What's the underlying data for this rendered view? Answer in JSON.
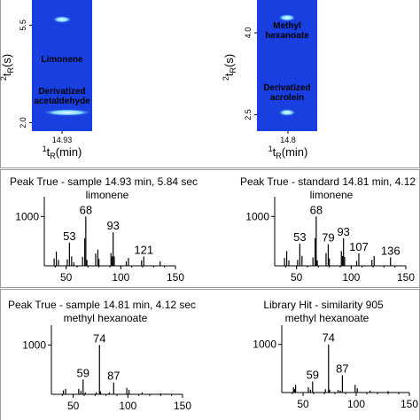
{
  "chart_data": [
    {
      "type": "heatmap",
      "id": "gcxgc-left",
      "x_tick_label": "14.93",
      "y_tick_labels": [
        "5.5",
        "2.0"
      ],
      "xlabel": "1tR(min)",
      "ylabel": "2tR(s)",
      "compounds": [
        {
          "label": "Limonene",
          "y": 5.84
        },
        {
          "label": "Derivatized acetaldehyde",
          "y": 2.2
        }
      ],
      "colors": {
        "background": "#1a3fe0",
        "spot": "#9fe8ff"
      }
    },
    {
      "type": "heatmap",
      "id": "gcxgc-right",
      "x_tick_label": "14.8",
      "y_tick_labels": [
        "4.0",
        "2.5"
      ],
      "xlabel": "1tR(min)",
      "ylabel": "2tR(s)",
      "compounds": [
        {
          "label": "Methyl hexanoate",
          "y": 4.12
        },
        {
          "label": "Derivatized acrolein",
          "y": 2.55
        }
      ],
      "colors": {
        "background": "#1a3fe0",
        "spot": "#9fe8ff"
      }
    },
    {
      "type": "bar",
      "id": "ms-sample-limonene",
      "title": "Peak True - sample 14.93 min, 5.84 sec",
      "subtitle": "limonene",
      "xlim": [
        30,
        150
      ],
      "ylim": [
        0,
        1400
      ],
      "x_ticks": [
        "50",
        "100",
        "150"
      ],
      "y_ticks": [
        "1000"
      ],
      "peaks": [
        [
          39,
          150
        ],
        [
          41,
          290
        ],
        [
          43,
          120
        ],
        [
          51,
          130
        ],
        [
          53,
          470
        ],
        [
          55,
          190
        ],
        [
          57,
          70
        ],
        [
          65,
          180
        ],
        [
          67,
          560
        ],
        [
          68,
          1000
        ],
        [
          69,
          120
        ],
        [
          77,
          250
        ],
        [
          79,
          330
        ],
        [
          80,
          140
        ],
        [
          91,
          260
        ],
        [
          92,
          190
        ],
        [
          93,
          680
        ],
        [
          94,
          190
        ],
        [
          105,
          90
        ],
        [
          107,
          160
        ],
        [
          119,
          110
        ],
        [
          121,
          190
        ],
        [
          136,
          90
        ]
      ],
      "peak_labels": [
        {
          "x": 53,
          "label": "53"
        },
        {
          "x": 68,
          "label": "68"
        },
        {
          "x": 93,
          "label": "93"
        },
        {
          "x": 121,
          "label": "121"
        }
      ]
    },
    {
      "type": "bar",
      "id": "ms-standard-limonene",
      "title": "Peak True - standard 14.81 min, 4.12",
      "subtitle": "limonene",
      "xlim": [
        30,
        150
      ],
      "ylim": [
        0,
        1400
      ],
      "x_ticks": [
        "50",
        "100",
        "150"
      ],
      "y_ticks": [
        "1000"
      ],
      "peaks": [
        [
          39,
          160
        ],
        [
          41,
          300
        ],
        [
          43,
          110
        ],
        [
          51,
          120
        ],
        [
          53,
          450
        ],
        [
          55,
          200
        ],
        [
          65,
          170
        ],
        [
          67,
          560
        ],
        [
          68,
          1000
        ],
        [
          69,
          110
        ],
        [
          77,
          260
        ],
        [
          79,
          440
        ],
        [
          80,
          150
        ],
        [
          91,
          300
        ],
        [
          92,
          200
        ],
        [
          93,
          560
        ],
        [
          94,
          180
        ],
        [
          105,
          100
        ],
        [
          107,
          250
        ],
        [
          119,
          120
        ],
        [
          121,
          200
        ],
        [
          136,
          170
        ]
      ],
      "peak_labels": [
        {
          "x": 53,
          "label": "53"
        },
        {
          "x": 68,
          "label": "68"
        },
        {
          "x": 79,
          "label": "79"
        },
        {
          "x": 93,
          "label": "93"
        },
        {
          "x": 107,
          "label": "107"
        },
        {
          "x": 136,
          "label": "136"
        }
      ]
    },
    {
      "type": "bar",
      "id": "ms-sample-methyl-hexanoate",
      "title": "Peak True - sample 14.81 min, 4.12 sec",
      "subtitle": "methyl hexanoate",
      "xlim": [
        30,
        150
      ],
      "ylim": [
        0,
        1400
      ],
      "x_ticks": [
        "50",
        "100",
        "150"
      ],
      "y_ticks": [
        "1000"
      ],
      "peaks": [
        [
          41,
          80
        ],
        [
          43,
          110
        ],
        [
          55,
          110
        ],
        [
          57,
          70
        ],
        [
          59,
          300
        ],
        [
          61,
          40
        ],
        [
          71,
          40
        ],
        [
          74,
          1000
        ],
        [
          75,
          60
        ],
        [
          83,
          40
        ],
        [
          87,
          240
        ],
        [
          99,
          130
        ],
        [
          101,
          90
        ],
        [
          113,
          40
        ],
        [
          130,
          20
        ]
      ],
      "peak_labels": [
        {
          "x": 59,
          "label": "59"
        },
        {
          "x": 74,
          "label": "74"
        },
        {
          "x": 87,
          "label": "87"
        }
      ]
    },
    {
      "type": "bar",
      "id": "ms-library-methyl-hexanoate",
      "title": "Library Hit - similarity 905",
      "subtitle": "methyl hexanoate",
      "xlim": [
        30,
        150
      ],
      "ylim": [
        0,
        1400
      ],
      "x_ticks": [
        "50",
        "100",
        "150"
      ],
      "y_ticks": [
        "1000"
      ],
      "peaks": [
        [
          41,
          110
        ],
        [
          42,
          70
        ],
        [
          43,
          160
        ],
        [
          55,
          110
        ],
        [
          57,
          60
        ],
        [
          59,
          230
        ],
        [
          71,
          70
        ],
        [
          74,
          1000
        ],
        [
          75,
          60
        ],
        [
          83,
          50
        ],
        [
          85,
          40
        ],
        [
          87,
          360
        ],
        [
          99,
          160
        ],
        [
          101,
          90
        ],
        [
          113,
          40
        ],
        [
          130,
          30
        ]
      ],
      "peak_labels": [
        {
          "x": 59,
          "label": "59"
        },
        {
          "x": 74,
          "label": "74"
        },
        {
          "x": 87,
          "label": "87"
        }
      ]
    }
  ]
}
